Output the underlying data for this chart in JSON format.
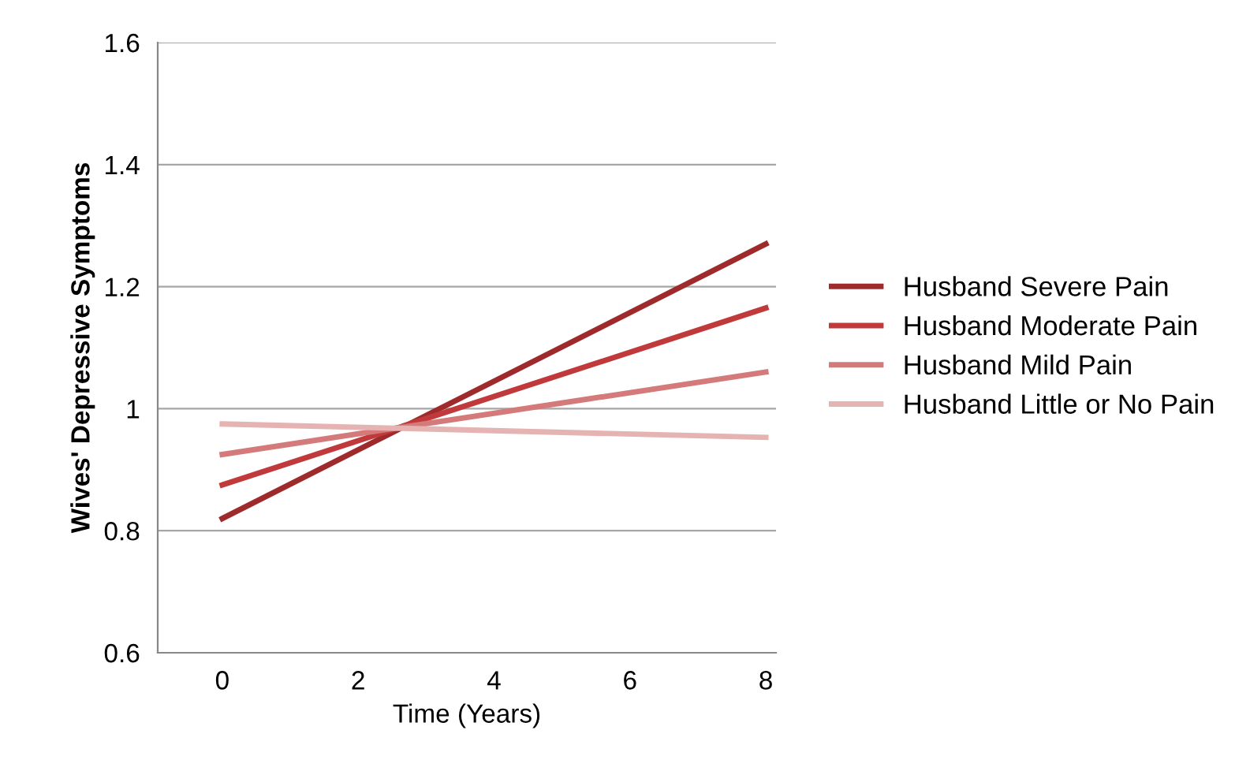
{
  "chart_data": {
    "type": "line",
    "xlabel": "Time (Years)",
    "ylabel": "Wives' Depressive Symptoms",
    "x": [
      0,
      8
    ],
    "series": [
      {
        "name": "Husband Severe Pain",
        "color": "#9e2a2c",
        "values": [
          0.82,
          1.27
        ]
      },
      {
        "name": "Husband Moderate Pain",
        "color": "#c0393b",
        "values": [
          0.875,
          1.165
        ]
      },
      {
        "name": "Husband Mild Pain",
        "color": "#d47a7a",
        "values": [
          0.925,
          1.06
        ]
      },
      {
        "name": "Husband Little or No Pain",
        "color": "#e6b3b3",
        "values": [
          0.975,
          0.953
        ]
      }
    ],
    "xlim": [
      -0.95,
      8.15
    ],
    "xticks": [
      0,
      2,
      4,
      6,
      8
    ],
    "ylim": [
      0.6,
      1.6
    ],
    "yticks": [
      0.6,
      0.8,
      1,
      1.2,
      1.4,
      1.6
    ],
    "grid": "y",
    "legend": "right",
    "marker": "none",
    "line_style": "solid"
  }
}
